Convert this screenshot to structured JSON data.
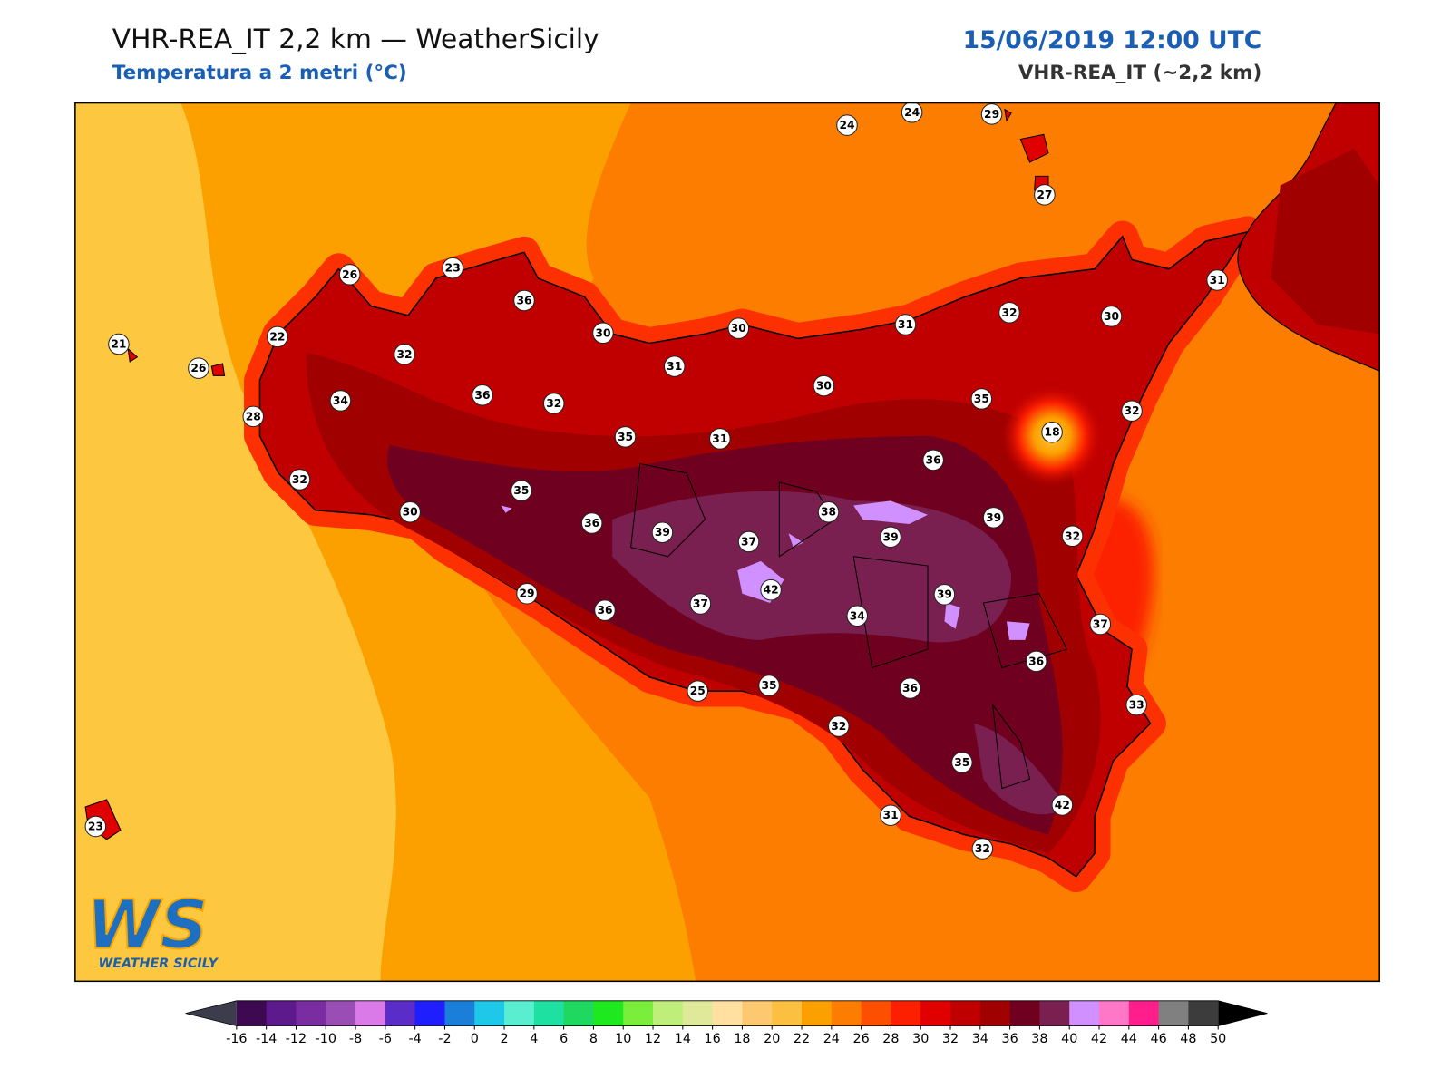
{
  "header": {
    "title": "VHR-REA_IT 2,2 km — WeatherSicily",
    "subtitle": "Temperatura a 2 metri (°C)",
    "datetime": "15/06/2019 12:00 UTC",
    "model": "VHR-REA_IT (~2,2 km)"
  },
  "stations": [
    24,
    24,
    29,
    27,
    26,
    23,
    36,
    30,
    30,
    31,
    32,
    30,
    31,
    21,
    22,
    26,
    32,
    31,
    30,
    35,
    18,
    32,
    28,
    34,
    36,
    32,
    35,
    31,
    36,
    32,
    30,
    35,
    36,
    39,
    37,
    38,
    39,
    39,
    32,
    29,
    36,
    37,
    42,
    34,
    39,
    37,
    36,
    25,
    35,
    36,
    32,
    33,
    35,
    42,
    31,
    32,
    23
  ],
  "colorbar": {
    "ticks": [
      -16,
      -14,
      -12,
      -10,
      -8,
      -6,
      -4,
      -2,
      0,
      2,
      4,
      6,
      8,
      10,
      12,
      14,
      16,
      18,
      20,
      22,
      24,
      26,
      28,
      30,
      32,
      34,
      36,
      38,
      40,
      42,
      44,
      46,
      48,
      50
    ],
    "colors": [
      "#3d0a52",
      "#5c1a8c",
      "#7a2da0",
      "#9a4db5",
      "#d97ae8",
      "#5a2dc8",
      "#1e1eff",
      "#1a7fd9",
      "#1ec8e8",
      "#5aeed0",
      "#1ee0a0",
      "#1ed860",
      "#1ee81e",
      "#7aee3a",
      "#c0ee7a",
      "#e0e89a",
      "#ffe0a0",
      "#fcc870",
      "#fcc040",
      "#fca000",
      "#fc7d00",
      "#fc5000",
      "#fc2000",
      "#e00000",
      "#c00000",
      "#a00000",
      "#700020",
      "#7a2050",
      "#d090ff",
      "#ff78c8",
      "#ff1e8c",
      "#808080",
      "#3c3c3c"
    ],
    "under_color": "#3c3c4c",
    "over_color": "#000000"
  },
  "logo": {
    "mark": "WS",
    "text": "WEATHER SICILY"
  }
}
